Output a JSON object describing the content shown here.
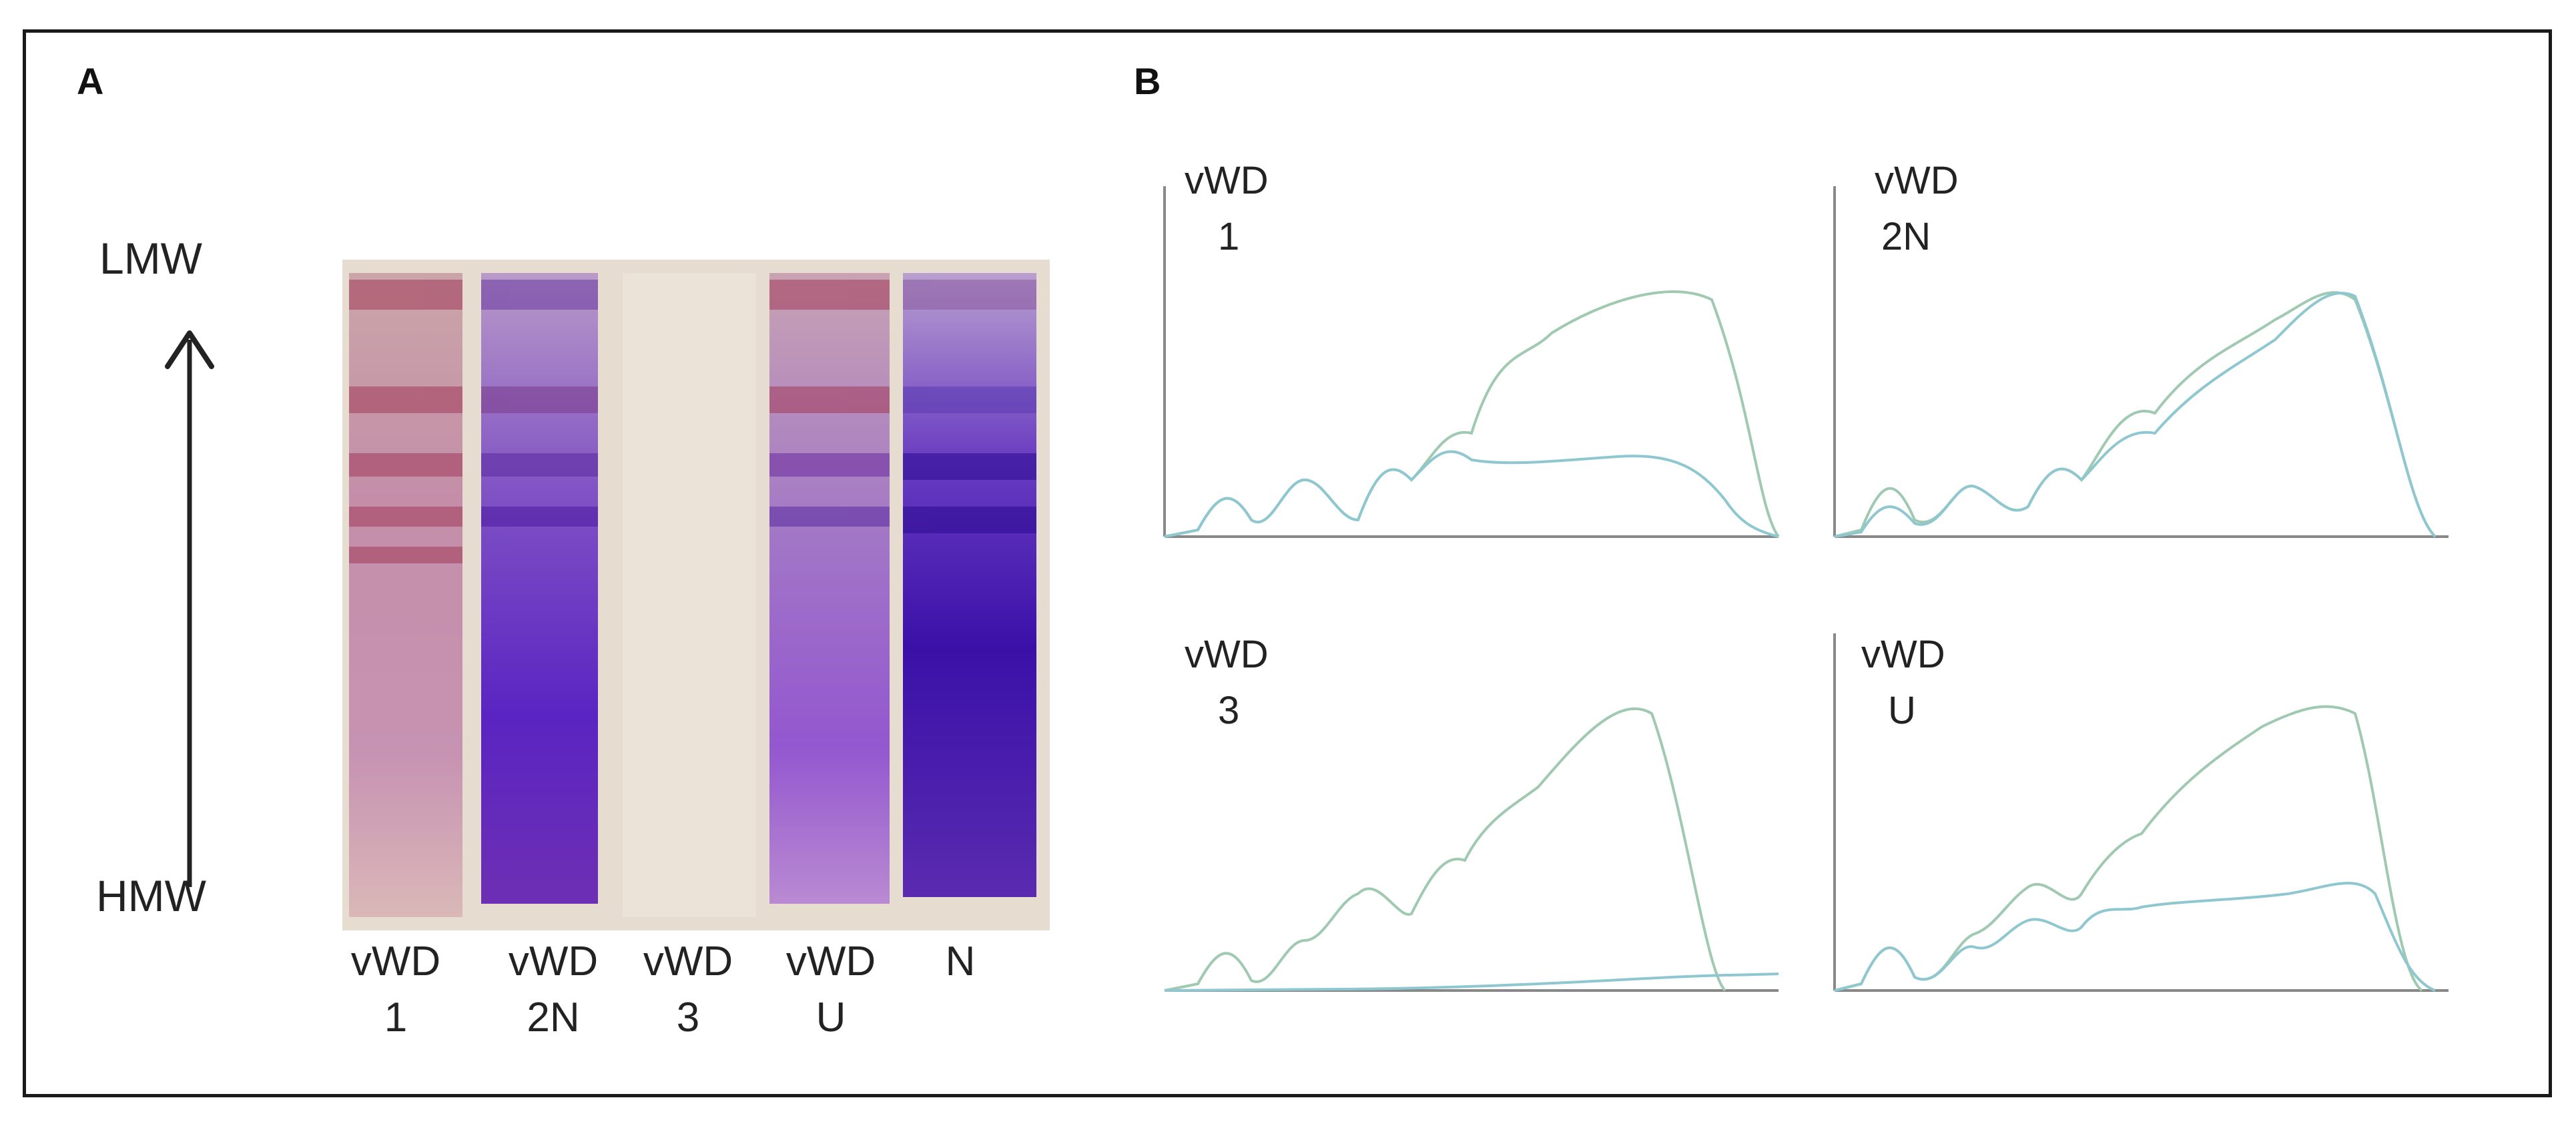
{
  "panel_a": {
    "letter": "A",
    "axis_top": "LMW",
    "axis_bottom": "HMW",
    "lanes": [
      {
        "name": "vWD",
        "sub": "1"
      },
      {
        "name": "vWD",
        "sub": "2N"
      },
      {
        "name": "vWD",
        "sub": "3"
      },
      {
        "name": "vWD",
        "sub": "U"
      },
      {
        "name": "N",
        "sub": ""
      }
    ],
    "colors": {
      "gel_bg": "#e7ddd2",
      "red_band": "#b84a6a",
      "purple_band": "#5a2bb0",
      "dark_purple": "#3a1490"
    }
  },
  "panel_b": {
    "letter": "B",
    "plots": [
      {
        "line1": "vWD",
        "line2": "1",
        "curve_color": "#9fc9b0",
        "curve2_color": "#8ec7cf"
      },
      {
        "line1": "vWD",
        "line2": "2N",
        "curve_color": "#9fc9b0",
        "curve2_color": "#8ec7cf"
      },
      {
        "line1": "vWD",
        "line2": "3",
        "curve_color": "#9fc9b0",
        "curve2_color": "#8ec7cf"
      },
      {
        "line1": "vWD",
        "line2": "U",
        "curve_color": "#9fc9b0",
        "curve2_color": "#8ec7cf"
      }
    ]
  }
}
